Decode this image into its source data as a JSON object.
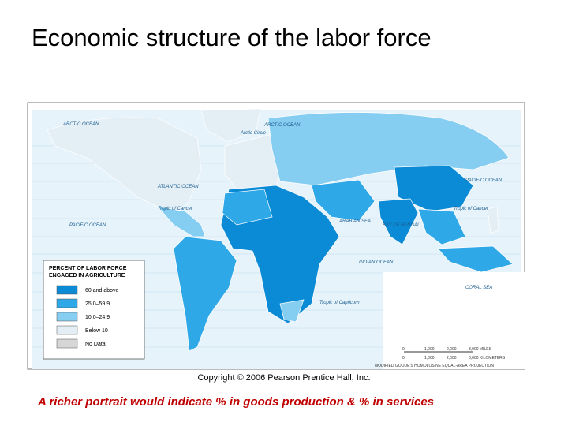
{
  "title": "Economic structure of the labor force",
  "map": {
    "labels": [
      "ARCTIC OCEAN",
      "Arctic Circle",
      "ARCTIC OCEAN",
      "ATLANTIC OCEAN",
      "PACIFIC OCEAN",
      "Tropic of Cancer",
      "PACIFIC OCEAN",
      "ARABIAN SEA",
      "BAY OF BENGAL",
      "Tropic of Cancer",
      "INDIAN OCEAN",
      "CORAL SEA",
      "Tropic of Capricorn"
    ],
    "legend": {
      "title": [
        "PERCENT OF LABOR FORCE",
        "ENGAGED IN AGRICULTURE"
      ],
      "items": [
        {
          "label": "60 and above",
          "color": "#0b8ad6"
        },
        {
          "label": "25.0–59.9",
          "color": "#2fa8e8"
        },
        {
          "label": "10.0–24.9",
          "color": "#86cdf2"
        },
        {
          "label": "Below 10",
          "color": "#e3eef5"
        },
        {
          "label": "No Data",
          "color": "#d6d6d6"
        }
      ]
    },
    "scale": {
      "miles": [
        "0",
        "1,000",
        "2,000",
        "3,000 MILES"
      ],
      "kilometers": [
        "0",
        "1,000",
        "2,000",
        "3,000 KILOMETERS"
      ]
    },
    "projection": "MODIFIED GOODE'S HOMOLOSINE EQUAL-AREA PROJECTION"
  },
  "copyright": "Copyright © 2006 Pearson Prentice Hall, Inc.",
  "caption": "A richer portrait would indicate % in goods production & % in services"
}
